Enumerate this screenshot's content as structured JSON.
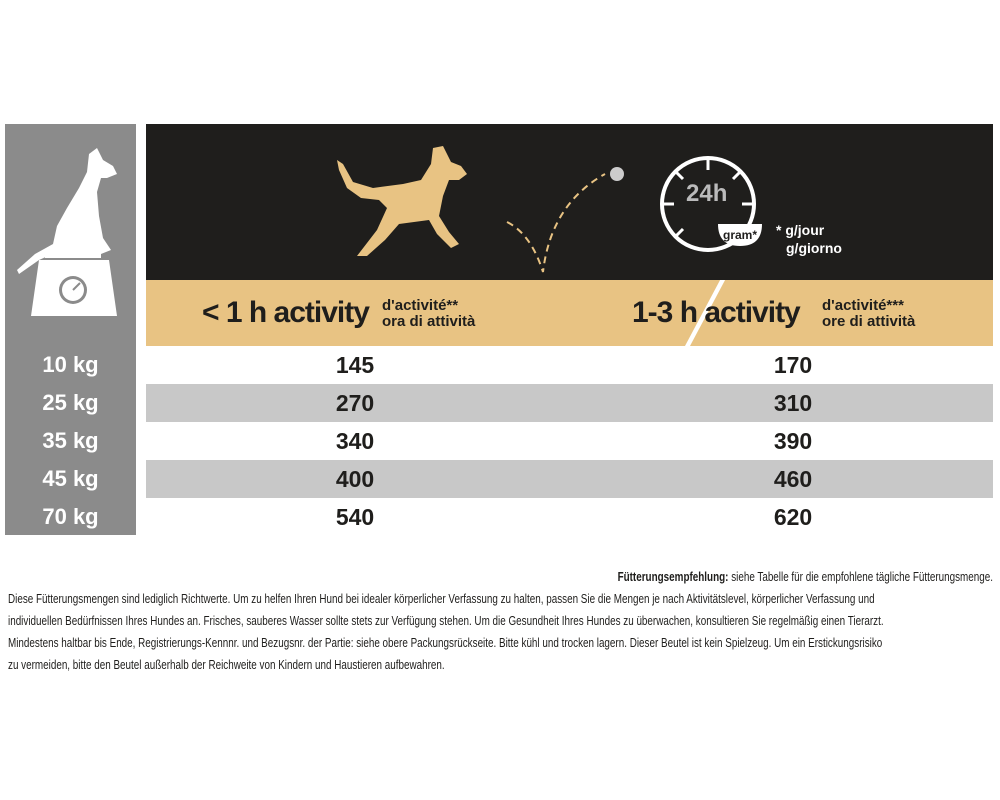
{
  "header": {
    "clock_label": "24h",
    "bowl_label": "gram*",
    "unit_lines": [
      "* g/jour",
      "g/giorno"
    ]
  },
  "columns": [
    {
      "label": "< 1 h activity",
      "sub": [
        "d'activité**",
        "ora di attività"
      ]
    },
    {
      "label": "1-3 h activity",
      "sub": [
        "d'activité***",
        "ore di attività"
      ]
    }
  ],
  "rows": [
    {
      "weight": "10 kg",
      "values": [
        "145",
        "170"
      ]
    },
    {
      "weight": "25 kg",
      "values": [
        "270",
        "310"
      ]
    },
    {
      "weight": "35 kg",
      "values": [
        "340",
        "390"
      ]
    },
    {
      "weight": "45 kg",
      "values": [
        "400",
        "460"
      ]
    },
    {
      "weight": "70 kg",
      "values": [
        "540",
        "620"
      ]
    }
  ],
  "footer": {
    "heading": "Fütterungsempfehlung:",
    "heading_rest": " siehe Tabelle für die empfohlene tägliche Fütterungsmenge.",
    "lines": [
      "Diese Fütterungsmengen sind lediglich Richtwerte. Um zu helfen Ihren Hund bei idealer körperlicher Verfassung zu halten, passen Sie die Mengen je nach Aktivitätslevel, körperlicher Verfassung und",
      "individuellen Bedürfnissen Ihres Hundes an. Frisches, sauberes Wasser sollte stets zur Verfügung stehen. Um die Gesundheit Ihres Hundes zu überwachen, konsultieren Sie regelmäßig einen Tierarzt.",
      "Mindestens haltbar bis Ende, Registrierungs-Kennnr. und Bezugsnr. der Partie: siehe obere Packungsrückseite. Bitte kühl und trocken lagern. Dieser Beutel ist kein Spielzeug. Um ein Erstickungsrisiko",
      "zu vermeiden, bitte den Beutel außerhalb der Reichweite von Kindern und Haustieren aufbewahren."
    ]
  },
  "colors": {
    "tan": "#e8c383",
    "dark": "#1f1e1c",
    "gray": "#8b8b8b",
    "row_alt": "#c8c8c8"
  },
  "icons": [
    "dog-on-scale-icon",
    "running-dog-icon",
    "bouncing-ball-icon",
    "clock-bowl-icon"
  ]
}
